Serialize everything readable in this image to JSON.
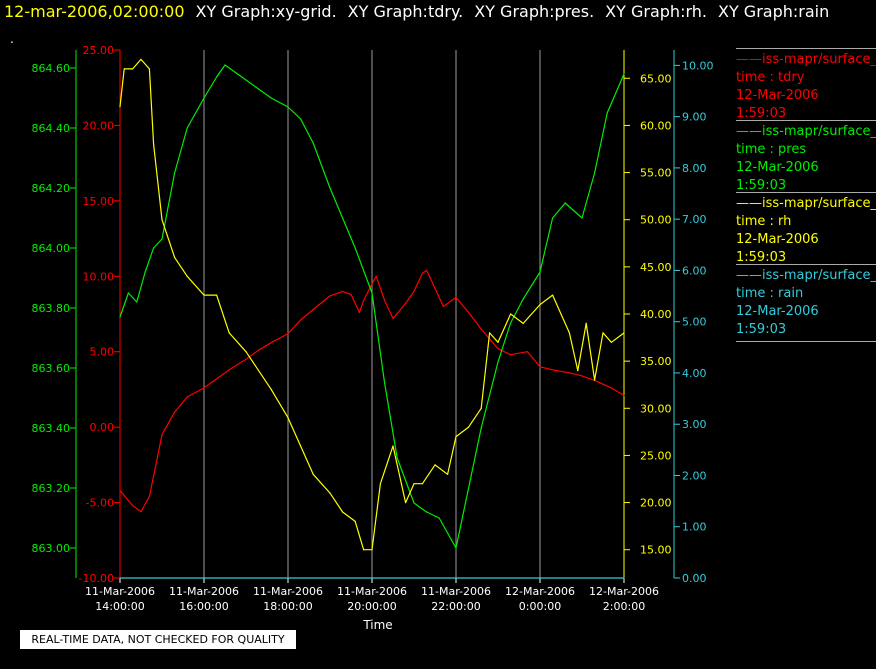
{
  "header": {
    "timestamp": "12-mar-2006,02:00:00",
    "graphs": [
      "XY Graph:xy-grid.",
      "XY Graph:tdry.",
      "XY Graph:pres.",
      "XY Graph:rh.",
      "XY Graph:rain"
    ]
  },
  "dot": ".",
  "notice": "REAL-TIME DATA, NOT CHECKED FOR QUALITY",
  "legend": [
    {
      "source": "iss-mapr/surface_",
      "var": "time : tdry",
      "date": "12-Mar-2006",
      "time": "1:59:03",
      "color": "#ff0000"
    },
    {
      "source": "iss-mapr/surface_",
      "var": "time : pres",
      "date": "12-Mar-2006",
      "time": "1:59:03",
      "color": "#00ee00"
    },
    {
      "source": "iss-mapr/surface_",
      "var": "time : rh",
      "date": "12-Mar-2006",
      "time": "1:59:03",
      "color": "#ffff00"
    },
    {
      "source": "iss-mapr/surface_",
      "var": "time : rain",
      "date": "12-Mar-2006",
      "time": "1:59:03",
      "color": "#33ccdd"
    }
  ],
  "chart_data": {
    "type": "line",
    "xlabel": "Time",
    "x_ticks": [
      {
        "hour": 14,
        "date": "11-Mar-2006",
        "time": "14:00:00"
      },
      {
        "hour": 16,
        "date": "11-Mar-2006",
        "time": "16:00:00"
      },
      {
        "hour": 18,
        "date": "11-Mar-2006",
        "time": "18:00:00"
      },
      {
        "hour": 20,
        "date": "11-Mar-2006",
        "time": "20:00:00"
      },
      {
        "hour": 22,
        "date": "11-Mar-2006",
        "time": "22:00:00"
      },
      {
        "hour": 24,
        "date": "12-Mar-2006",
        "time": "0:00:00"
      },
      {
        "hour": 26,
        "date": "12-Mar-2006",
        "time": "2:00:00"
      }
    ],
    "xlim": [
      14,
      26
    ],
    "grid": true,
    "axes": {
      "tdry": {
        "color": "#ff0000",
        "ylim": [
          -10,
          25
        ],
        "ticks": [
          "-10.00",
          "-5.00",
          "0.00",
          "5.00",
          "10.00",
          "15.00",
          "20.00",
          "25.00"
        ]
      },
      "pres": {
        "color": "#00ee00",
        "ylim": [
          862.9,
          864.66
        ],
        "ticks": [
          "863.00",
          "863.20",
          "863.40",
          "863.60",
          "863.80",
          "864.00",
          "864.20",
          "864.40",
          "864.60"
        ]
      },
      "rh": {
        "color": "#ffff00",
        "ylim": [
          12,
          68
        ],
        "ticks": [
          "15.00",
          "20.00",
          "25.00",
          "30.00",
          "35.00",
          "40.00",
          "45.00",
          "50.00",
          "55.00",
          "60.00",
          "65.00"
        ]
      },
      "rain": {
        "color": "#33ccdd",
        "ylim": [
          0,
          10.3
        ],
        "ticks": [
          "0.00",
          "1.00",
          "2.00",
          "3.00",
          "4.00",
          "5.00",
          "6.00",
          "7.00",
          "8.00",
          "9.00",
          "10.00"
        ]
      }
    },
    "series": [
      {
        "name": "time : tdry",
        "axis": "tdry",
        "x": [
          14.0,
          14.3,
          14.5,
          14.7,
          15.0,
          15.3,
          15.6,
          16.0,
          16.3,
          16.6,
          17.0,
          17.3,
          17.6,
          18.0,
          18.3,
          18.6,
          19.0,
          19.3,
          19.5,
          19.7,
          19.8,
          20.0,
          20.1,
          20.3,
          20.5,
          20.8,
          21.0,
          21.2,
          21.3,
          21.5,
          21.7,
          22.0,
          22.3,
          22.6,
          23.0,
          23.3,
          23.7,
          24.0,
          24.3,
          24.7,
          25.0,
          25.3,
          25.7,
          26.0
        ],
        "y": [
          -4.2,
          -5.2,
          -5.6,
          -4.6,
          -0.5,
          1.0,
          2.0,
          2.6,
          3.2,
          3.8,
          4.5,
          5.1,
          5.6,
          6.2,
          7.1,
          7.8,
          8.7,
          9.0,
          8.8,
          7.6,
          8.4,
          9.5,
          10.0,
          8.4,
          7.2,
          8.2,
          9.0,
          10.2,
          10.4,
          9.2,
          8.0,
          8.6,
          7.6,
          6.5,
          5.2,
          4.8,
          5.0,
          4.0,
          3.8,
          3.6,
          3.4,
          3.1,
          2.6,
          2.1
        ]
      },
      {
        "name": "time : pres",
        "axis": "pres",
        "x": [
          14.0,
          14.2,
          14.4,
          14.6,
          14.8,
          15.0,
          15.3,
          15.6,
          16.0,
          16.3,
          16.5,
          16.8,
          17.0,
          17.3,
          17.6,
          18.0,
          18.3,
          18.6,
          19.0,
          19.3,
          19.6,
          20.0,
          20.3,
          20.6,
          21.0,
          21.3,
          21.6,
          22.0,
          22.3,
          22.6,
          23.0,
          23.3,
          23.6,
          24.0,
          24.3,
          24.6,
          25.0,
          25.3,
          25.6,
          26.0
        ],
        "y": [
          863.77,
          863.85,
          863.82,
          863.92,
          864.0,
          864.03,
          864.25,
          864.4,
          864.5,
          864.57,
          864.61,
          864.58,
          864.56,
          864.53,
          864.5,
          864.47,
          864.43,
          864.35,
          864.2,
          864.1,
          864.0,
          863.85,
          863.55,
          863.3,
          863.15,
          863.12,
          863.1,
          863.0,
          863.2,
          863.4,
          863.62,
          863.75,
          863.83,
          863.92,
          864.1,
          864.15,
          864.1,
          864.25,
          864.45,
          864.58
        ]
      },
      {
        "name": "time : rh",
        "axis": "rh",
        "x": [
          14.0,
          14.1,
          14.3,
          14.5,
          14.7,
          14.8,
          15.0,
          15.3,
          15.6,
          16.0,
          16.3,
          16.6,
          17.0,
          17.3,
          17.6,
          18.0,
          18.3,
          18.6,
          19.0,
          19.3,
          19.6,
          19.8,
          20.0,
          20.2,
          20.5,
          20.8,
          21.0,
          21.2,
          21.5,
          21.8,
          22.0,
          22.3,
          22.6,
          22.8,
          23.0,
          23.3,
          23.6,
          24.0,
          24.3,
          24.5,
          24.7,
          24.9,
          25.1,
          25.3,
          25.5,
          25.7,
          26.0
        ],
        "y": [
          62,
          66,
          66,
          67,
          66,
          58,
          50,
          46,
          44,
          42,
          42,
          38,
          36,
          34,
          32,
          29,
          26,
          23,
          21,
          19,
          18,
          15,
          15,
          22,
          26,
          20,
          22,
          22,
          24,
          23,
          27,
          28,
          30,
          38,
          37,
          40,
          39,
          41,
          42,
          40,
          38,
          34,
          39,
          33,
          38,
          37,
          38
        ]
      },
      {
        "name": "time : rain",
        "axis": "rain",
        "x": [
          14,
          26
        ],
        "y": [
          0,
          0
        ]
      }
    ]
  }
}
